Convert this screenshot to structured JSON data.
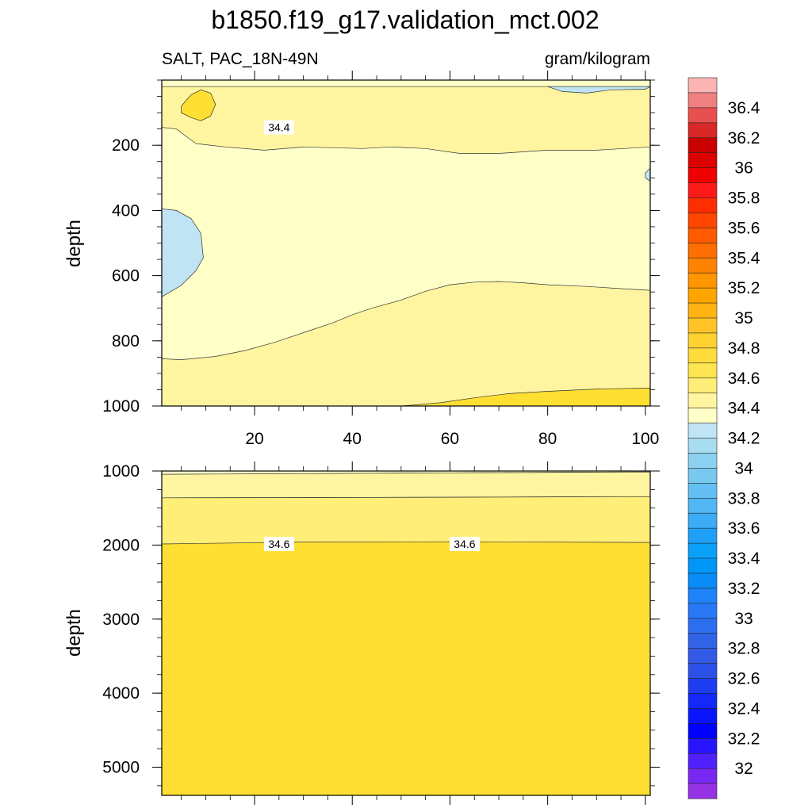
{
  "chart_data": [
    {
      "type": "contour",
      "title": "b1850.f19_g17.validation_mct.002",
      "subtitle_left": "SALT, PAC_18N-49N",
      "subtitle_right": "gram/kilogram",
      "ylabel": "depth",
      "xlim": [
        1,
        101
      ],
      "ylim": [
        1000,
        0
      ],
      "x_ticks": [
        "20",
        "40",
        "60",
        "80",
        "100"
      ],
      "x_tick_values": [
        20,
        40,
        60,
        80,
        100
      ],
      "y_ticks": [
        "200",
        "400",
        "600",
        "800",
        "1000"
      ],
      "y_tick_values": [
        200,
        400,
        600,
        800,
        1000
      ],
      "base_fill_level": 34.2,
      "regions": [
        {
          "level": 34.4,
          "points": [
            [
              1,
              20
            ],
            [
              1,
              145
            ],
            [
              4,
              150
            ],
            [
              8,
              195
            ],
            [
              14,
              205
            ],
            [
              22,
              215
            ],
            [
              30,
              205
            ],
            [
              42,
              210
            ],
            [
              48,
              205
            ],
            [
              55,
              210
            ],
            [
              62,
              225
            ],
            [
              70,
              225
            ],
            [
              80,
              215
            ],
            [
              90,
              215
            ],
            [
              101,
              205
            ],
            [
              101,
              20
            ]
          ]
        },
        {
          "level": 34.0,
          "points": [
            [
              80,
              20
            ],
            [
              83,
              35
            ],
            [
              88,
              40
            ],
            [
              93,
              30
            ],
            [
              100,
              28
            ],
            [
              101,
              20
            ]
          ]
        },
        {
          "level": 34.0,
          "points": [
            [
              1,
              395
            ],
            [
              4,
              400
            ],
            [
              7,
              425
            ],
            [
              9,
              470
            ],
            [
              9.5,
              545
            ],
            [
              8,
              585
            ],
            [
              5,
              630
            ],
            [
              1,
              665
            ]
          ]
        },
        {
          "level": 34.0,
          "points": [
            [
              101,
              270
            ],
            [
              100,
              285
            ],
            [
              100,
              300
            ],
            [
              101,
              310
            ]
          ]
        },
        {
          "level": 34.4,
          "points": [
            [
              1,
              1000
            ],
            [
              1,
              855
            ],
            [
              5,
              858
            ],
            [
              12,
              848
            ],
            [
              18,
              830
            ],
            [
              24,
              805
            ],
            [
              30,
              775
            ],
            [
              36,
              745
            ],
            [
              40,
              720
            ],
            [
              44,
              700
            ],
            [
              50,
              675
            ],
            [
              55,
              648
            ],
            [
              60,
              628
            ],
            [
              65,
              620
            ],
            [
              70,
              618
            ],
            [
              75,
              622
            ],
            [
              80,
              628
            ],
            [
              88,
              633
            ],
            [
              95,
              640
            ],
            [
              101,
              645
            ],
            [
              101,
              1000
            ]
          ]
        },
        {
          "level": 34.6,
          "points": [
            [
              50,
              1000
            ],
            [
              58,
              990
            ],
            [
              65,
              975
            ],
            [
              72,
              962
            ],
            [
              80,
              955
            ],
            [
              90,
              948
            ],
            [
              101,
              945
            ],
            [
              101,
              1000
            ]
          ]
        },
        {
          "level": 34.6,
          "points": [
            [
              5,
              80
            ],
            [
              7,
              45
            ],
            [
              9,
              30
            ],
            [
              11,
              40
            ],
            [
              12,
              75
            ],
            [
              11,
              110
            ],
            [
              9,
              125
            ],
            [
              7,
              115
            ],
            [
              5,
              100
            ]
          ]
        }
      ],
      "contour_labels": [
        {
          "text": "34.4",
          "x": 25,
          "y": 145
        }
      ]
    },
    {
      "type": "contour",
      "ylabel": "depth",
      "xlim": [
        1,
        101
      ],
      "ylim": [
        5380,
        1000
      ],
      "x_ticks": [],
      "x_tick_values": [
        20,
        40,
        60,
        80,
        100
      ],
      "y_ticks": [
        "1000",
        "2000",
        "3000",
        "4000",
        "5000"
      ],
      "y_tick_values": [
        1000,
        2000,
        3000,
        4000,
        5000
      ],
      "base_fill_level": 34.6,
      "regions": [
        {
          "level": 34.2,
          "points": [
            [
              1,
              1000
            ],
            [
              101,
              1000
            ],
            [
              101,
              1012
            ],
            [
              60,
              1025
            ],
            [
              30,
              1035
            ],
            [
              1,
              1045
            ]
          ]
        },
        {
          "level": 34.4,
          "points": [
            [
              1,
              1045
            ],
            [
              30,
              1035
            ],
            [
              60,
              1025
            ],
            [
              101,
              1012
            ],
            [
              101,
              1345
            ],
            [
              60,
              1355
            ],
            [
              30,
              1360
            ],
            [
              1,
              1362
            ]
          ]
        },
        {
          "level": 34.5,
          "points": [
            [
              1,
              1362
            ],
            [
              30,
              1360
            ],
            [
              60,
              1355
            ],
            [
              101,
              1345
            ],
            [
              101,
              1965
            ],
            [
              60,
              1955
            ],
            [
              30,
              1960
            ],
            [
              1,
              1985
            ]
          ]
        }
      ],
      "contour_labels": [
        {
          "text": "34.6",
          "x": 25,
          "y": 1985
        },
        {
          "text": "34.6",
          "x": 63,
          "y": 1985
        }
      ]
    }
  ],
  "colorbar": {
    "labels": [
      "36.4",
      "36.2",
      "36",
      "35.8",
      "35.6",
      "35.4",
      "35.2",
      "35",
      "34.8",
      "34.6",
      "34.4",
      "34.2",
      "34",
      "33.8",
      "33.6",
      "33.4",
      "33.2",
      "33",
      "32.8",
      "32.6",
      "32.4",
      "32.2",
      "32"
    ],
    "colors": [
      "#fcb4b4",
      "#f08080",
      "#e85050",
      "#d82828",
      "#c80000",
      "#dc0000",
      "#f00000",
      "#ff1a1a",
      "#ff2e00",
      "#ff4600",
      "#ff5a00",
      "#ff6e00",
      "#ff8200",
      "#ff9600",
      "#ffa500",
      "#ffb414",
      "#ffc328",
      "#ffd232",
      "#ffdc3c",
      "#ffe650",
      "#ffee78",
      "#fff5a0",
      "#ffffc8",
      "#c0e4f4",
      "#a8dcf0",
      "#8cd2f0",
      "#78c8f0",
      "#64c0f4",
      "#50b6f4",
      "#3cacf6",
      "#1ea0f8",
      "#0aa0f8",
      "#0096f8",
      "#0a8cf8",
      "#1e82fa",
      "#2878f8",
      "#2d6ef0",
      "#3264e8",
      "#325ae6",
      "#2d50e8",
      "#1e3cf0",
      "#1428f8",
      "#0a14ff",
      "#0000ff",
      "#2814ff",
      "#5020ff",
      "#7828f0",
      "#9632e6"
    ]
  }
}
